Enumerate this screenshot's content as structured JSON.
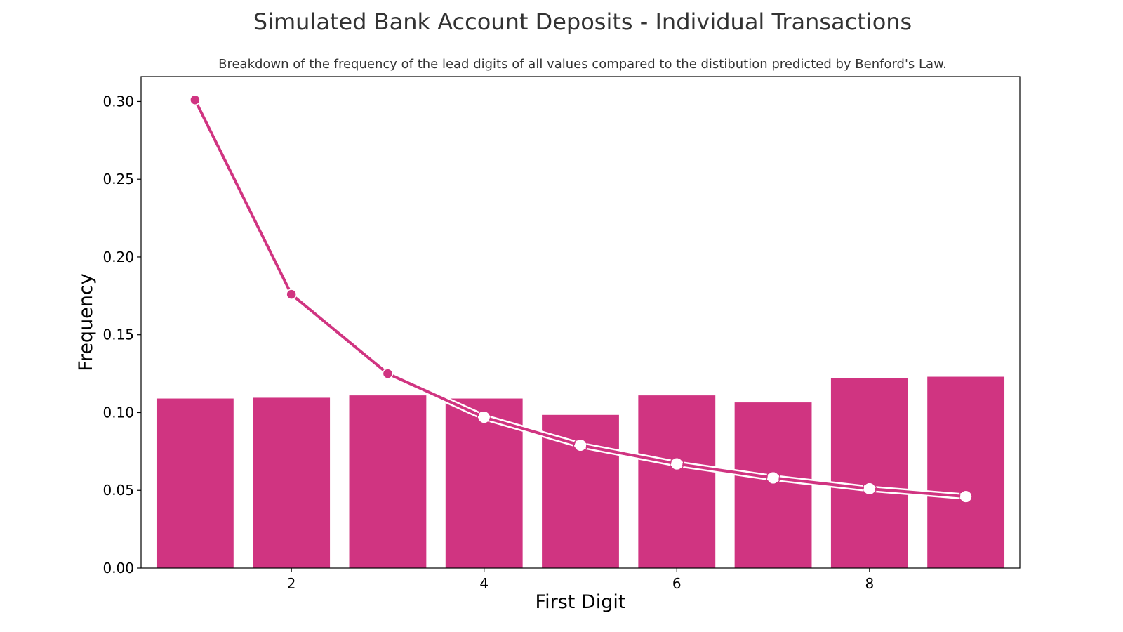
{
  "chart_data": {
    "type": "bar",
    "title": "Simulated Bank Account Deposits - Individual Transactions",
    "subtitle": "Breakdown of the frequency of the lead digits of all values compared to the distibution predicted by Benford's Law.",
    "xlabel": "First Digit",
    "ylabel": "Frequency",
    "x": [
      1,
      2,
      3,
      4,
      5,
      6,
      7,
      8,
      9
    ],
    "xlim": [
      0.44,
      9.56
    ],
    "ylim": [
      0,
      0.316
    ],
    "xticks": [
      "2",
      "4",
      "6",
      "8"
    ],
    "yticks": [
      "0.00",
      "0.05",
      "0.10",
      "0.15",
      "0.20",
      "0.25",
      "0.30"
    ],
    "bar_series": {
      "values": [
        0.109,
        0.1095,
        0.111,
        0.109,
        0.0985,
        0.111,
        0.1065,
        0.122,
        0.123
      ],
      "color": "#d03481"
    },
    "line_series": {
      "values": [
        0.301,
        0.176,
        0.125,
        0.097,
        0.079,
        0.067,
        0.058,
        0.051,
        0.046
      ],
      "color": "#d03481"
    },
    "grid": false,
    "legend": "none"
  }
}
